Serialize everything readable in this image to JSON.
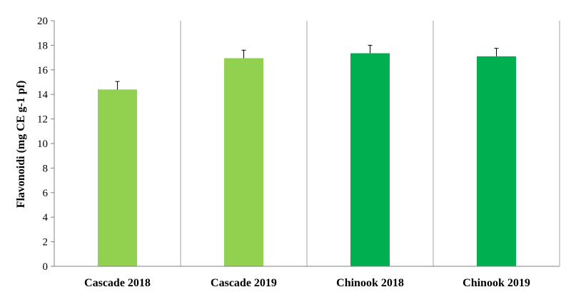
{
  "chart_data": {
    "type": "bar",
    "title": "",
    "xlabel": "",
    "ylabel": "Flavonoidi (mg CE g-1 pf)",
    "ylim": [
      0,
      20
    ],
    "yticks": [
      "0",
      "2",
      "4",
      "6",
      "8",
      "10",
      "12",
      "14",
      "16",
      "18",
      "20"
    ],
    "categories": [
      "Cascade 2018",
      "Cascade 2019",
      "Chinook 2018",
      "Chinook 2019"
    ],
    "values": [
      14.4,
      16.95,
      17.35,
      17.1
    ],
    "errors": [
      0.65,
      0.65,
      0.65,
      0.65
    ],
    "bar_colors": [
      "#92d050",
      "#92d050",
      "#00b050",
      "#00b050"
    ],
    "grid": false,
    "legend": "none"
  }
}
